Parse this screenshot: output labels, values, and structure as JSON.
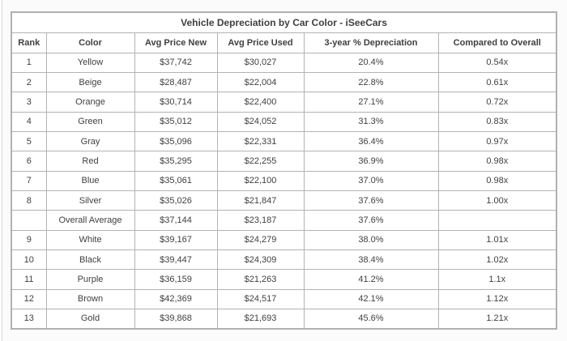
{
  "colors": {
    "page_background": "#fbfbfb",
    "edge_line": "#dcdcdc",
    "table_background": "#ffffff",
    "outer_border": "#b0b0b0",
    "grid_border": "#b3b3b3",
    "text_color": "#3f3f3f"
  },
  "chart_data": {
    "type": "table",
    "title": "Vehicle Depreciation by Car Color - iSeeCars",
    "columns": [
      "Rank",
      "Color",
      "Avg Price New",
      "Avg Price Used",
      "3-year % Depreciation",
      "Compared to Overall"
    ],
    "rows": [
      [
        "1",
        "Yellow",
        "$37,742",
        "$30,027",
        "20.4%",
        "0.54x"
      ],
      [
        "2",
        "Beige",
        "$28,487",
        "$22,004",
        "22.8%",
        "0.61x"
      ],
      [
        "3",
        "Orange",
        "$30,714",
        "$22,400",
        "27.1%",
        "0.72x"
      ],
      [
        "4",
        "Green",
        "$35,012",
        "$24,052",
        "31.3%",
        "0.83x"
      ],
      [
        "5",
        "Gray",
        "$35,096",
        "$22,331",
        "36.4%",
        "0.97x"
      ],
      [
        "6",
        "Red",
        "$35,295",
        "$22,255",
        "36.9%",
        "0.98x"
      ],
      [
        "7",
        "Blue",
        "$35,061",
        "$22,100",
        "37.0%",
        "0.98x"
      ],
      [
        "8",
        "Silver",
        "$35,026",
        "$21,847",
        "37.6%",
        "1.00x"
      ],
      [
        "",
        "Overall Average",
        "$37,144",
        "$23,187",
        "37.6%",
        ""
      ],
      [
        "9",
        "White",
        "$39,167",
        "$24,279",
        "38.0%",
        "1.01x"
      ],
      [
        "10",
        "Black",
        "$39,447",
        "$24,309",
        "38.4%",
        "1.02x"
      ],
      [
        "11",
        "Purple",
        "$36,159",
        "$21,263",
        "41.2%",
        "1.1x"
      ],
      [
        "12",
        "Brown",
        "$42,369",
        "$24,517",
        "42.1%",
        "1.12x"
      ],
      [
        "13",
        "Gold",
        "$39,868",
        "$21,693",
        "45.6%",
        "1.21x"
      ]
    ]
  }
}
